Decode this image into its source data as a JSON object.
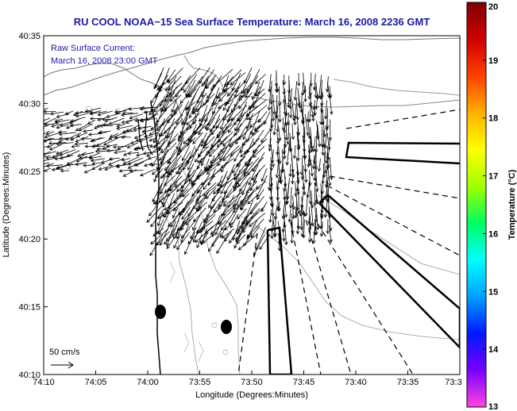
{
  "header": {
    "title": "RU COOL  NOAA−15  Sea Surface Temperature:  March 16, 2008 2236 GMT"
  },
  "overlay": {
    "current_label": "Raw Surface Current:",
    "current_time": "March 16, 2008 23:00 GMT",
    "scale_label": "50 cm/s"
  },
  "axes": {
    "xlabel": "Longitude (Degrees:Minutes)",
    "ylabel": "Latitude (Degrees:Minutes)",
    "xticks": [
      {
        "label": "74:10",
        "value": -74.1667
      },
      {
        "label": "74:05",
        "value": -74.0833
      },
      {
        "label": "74:00",
        "value": -74.0
      },
      {
        "label": "73:55",
        "value": -73.9167
      },
      {
        "label": "73:50",
        "value": -73.8333
      },
      {
        "label": "73:45",
        "value": -73.75
      },
      {
        "label": "73:40",
        "value": -73.6667
      },
      {
        "label": "73:35",
        "value": -73.5833
      },
      {
        "label": "73:3",
        "value": -73.5
      }
    ],
    "yticks": [
      {
        "label": "40:35",
        "value": 40.5833
      },
      {
        "label": "40:30",
        "value": 40.5
      },
      {
        "label": "40:25",
        "value": 40.4167
      },
      {
        "label": "40:20",
        "value": 40.3333
      },
      {
        "label": "40:15",
        "value": 40.25
      },
      {
        "label": "40:10",
        "value": 40.1667
      }
    ],
    "xlim": [
      -74.1667,
      -73.5
    ],
    "ylim": [
      40.1667,
      40.5833
    ]
  },
  "colorbar": {
    "label": "Temperature (°C)",
    "min": 13,
    "max": 20,
    "ticks": [
      {
        "label": "20",
        "value": 20
      },
      {
        "label": "19",
        "value": 19
      },
      {
        "label": "18",
        "value": 18
      },
      {
        "label": "17",
        "value": 17
      },
      {
        "label": "16",
        "value": 16
      },
      {
        "label": "15",
        "value": 15
      },
      {
        "label": "14",
        "value": 14
      },
      {
        "label": "13",
        "value": 13
      }
    ],
    "colors": [
      "#ff44dd",
      "#7a00ff",
      "#0018ff",
      "#00a0ff",
      "#00ffff",
      "#00ff60",
      "#a0ff00",
      "#ffff00",
      "#ffb000",
      "#ff4000",
      "#d00000",
      "#800000"
    ]
  },
  "colors": {
    "title": "#1a1aa6",
    "coast": "#777777",
    "isobath": "#999999",
    "arrow": "#000000"
  }
}
